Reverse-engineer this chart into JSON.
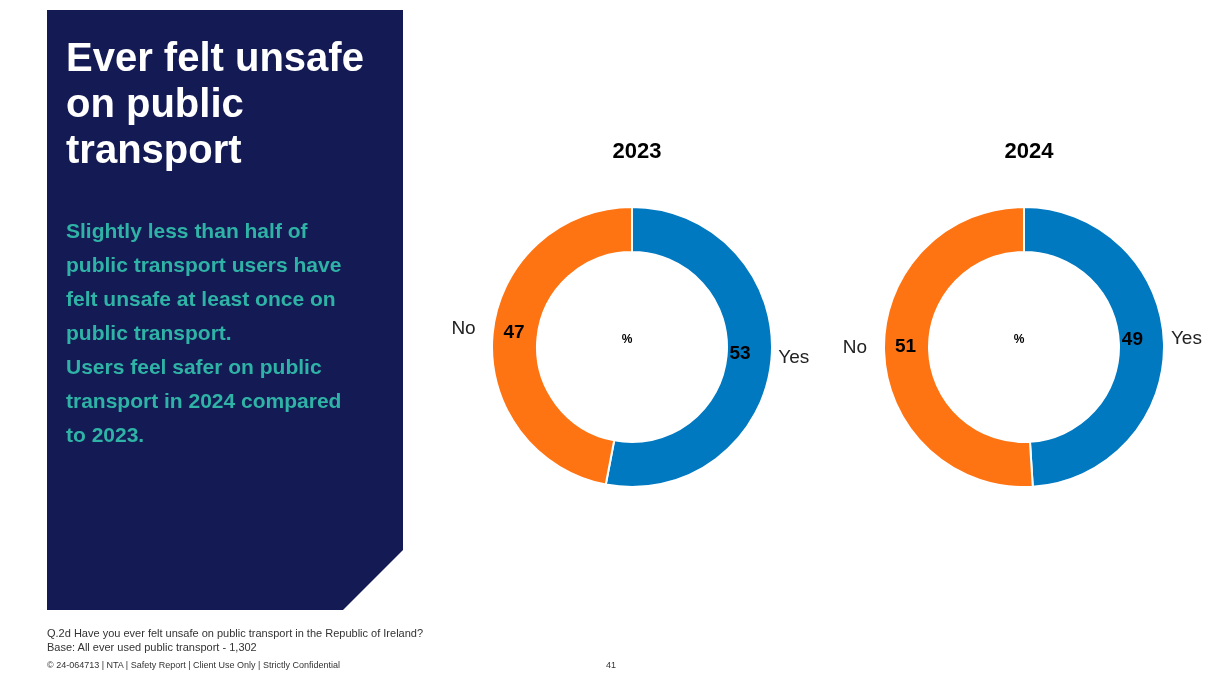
{
  "chart_data": [
    {
      "type": "other",
      "title": "Ever felt unsafe on public transport",
      "subtitle": "Slightly less than half of public transport users have felt unsafe at least once on public transport.\nUsers feel safer on public transport in 2024 compared to 2023.",
      "annotations": [
        "Q.2d Have you ever felt unsafe on public transport in the Republic of Ireland?",
        "Base:  All ever used public transport - 1,302",
        "© 24-064713 | NTA | Safety Report | Client Use Only | Strictly Confidential",
        "41"
      ]
    },
    {
      "type": "donut",
      "title": "2023",
      "categories": [
        "Yes",
        "No"
      ],
      "values": [
        53,
        47
      ],
      "colors": [
        "#0079c1",
        "#ff7412"
      ],
      "data_labels": true,
      "annotations": [
        "%"
      ]
    },
    {
      "type": "donut",
      "title": "2024",
      "categories": [
        "Yes",
        "No"
      ],
      "values": [
        49,
        51
      ],
      "colors": [
        "#0079c1",
        "#ff7412"
      ],
      "data_labels": true,
      "annotations": [
        "%"
      ]
    }
  ]
}
